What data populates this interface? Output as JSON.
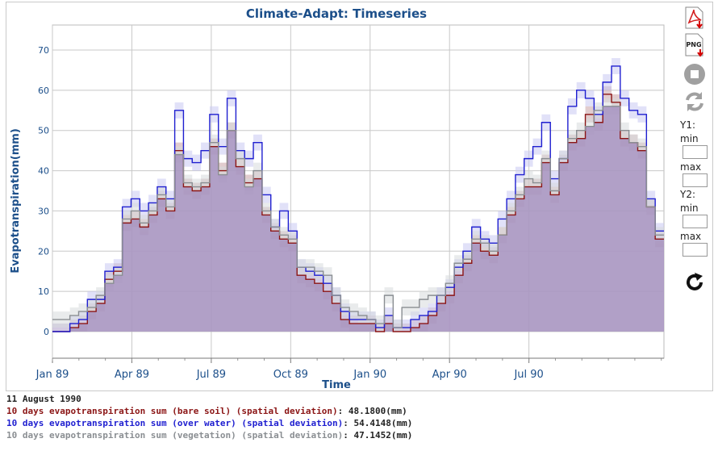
{
  "colors": {
    "bare_soil": "#8b1515",
    "over_water": "#1f1fd0",
    "vegetation": "#8a8e92",
    "area_fill": "#a996c1",
    "title": "#1c4f8a"
  },
  "controls": {
    "pdf_icon": "pdf-download-icon",
    "png_label": "PNG",
    "stop_icon": "stop-icon",
    "refresh_icon": "refresh-icon",
    "y1_label": "Y1:",
    "y2_label": "Y2:",
    "min_label": "min",
    "max_label": "max",
    "reload_icon": "reload-icon",
    "y1_min": "",
    "y1_max": "",
    "y2_min": "",
    "y2_max": ""
  },
  "info": {
    "date": "11 August 1990",
    "rows": [
      {
        "label": "10 days evapotranspiration sum (bare soil) (spatial deviation)",
        "value": "48.1800(mm)",
        "color": "#8b1515"
      },
      {
        "label": "10 days evapotranspiration sum (over water) (spatial deviation)",
        "value": "54.4148(mm)",
        "color": "#1f1fd0"
      },
      {
        "label": "10 days evapotranspiration sum (vegetation) (spatial deviation)",
        "value": "47.1452(mm)",
        "color": "#8a8e92"
      }
    ]
  },
  "chart_data": {
    "type": "line",
    "title": "Climate-Adapt: Timeseries",
    "xlabel": "Time",
    "ylabel": "Evapotranspiration(mm)",
    "ylim": [
      -6,
      76
    ],
    "yticks": [
      0,
      10,
      20,
      30,
      40,
      50,
      60,
      70
    ],
    "xticks": [
      "Jan 89",
      "Apr 89",
      "Jul 89",
      "Oct 89",
      "Jan 90",
      "Apr 90",
      "Jul 90"
    ],
    "step": "10-day",
    "grid": true,
    "series": [
      {
        "name": "10 days evapotranspiration sum (bare soil) (spatial deviation)",
        "color": "#8b1515",
        "values": [
          0,
          0,
          1,
          2,
          5,
          7,
          13,
          15,
          27,
          28,
          26,
          29,
          33,
          30,
          45,
          36,
          35,
          36,
          46,
          40,
          50,
          41,
          37,
          38,
          29,
          25,
          23,
          22,
          14,
          13,
          12,
          10,
          7,
          3,
          2,
          2,
          2,
          0,
          2,
          0,
          0,
          1,
          2,
          4,
          7,
          9,
          14,
          17,
          22,
          20,
          19,
          24,
          29,
          33,
          36,
          36,
          42,
          34,
          42,
          47,
          48,
          54,
          52,
          59,
          57,
          48,
          47,
          45,
          31,
          23
        ]
      },
      {
        "name": "10 days evapotranspiration sum (over water) (spatial deviation)",
        "color": "#1f1fd0",
        "values": [
          0,
          0,
          2,
          3,
          8,
          8,
          15,
          16,
          31,
          33,
          30,
          32,
          36,
          33,
          55,
          43,
          42,
          45,
          54,
          46,
          58,
          45,
          43,
          47,
          34,
          26,
          30,
          25,
          16,
          15,
          14,
          12,
          9,
          5,
          3,
          3,
          3,
          1,
          4,
          1,
          1,
          3,
          4,
          5,
          9,
          11,
          16,
          20,
          26,
          23,
          22,
          28,
          33,
          39,
          43,
          46,
          52,
          38,
          43,
          56,
          60,
          58,
          54,
          62,
          66,
          58,
          55,
          54,
          33,
          25
        ]
      },
      {
        "name": "10 days evapotranspiration sum (vegetation) (spatial deviation)",
        "color": "#8a8e92",
        "values": [
          3,
          3,
          4,
          5,
          6,
          9,
          12,
          14,
          28,
          30,
          27,
          30,
          34,
          31,
          44,
          37,
          36,
          37,
          47,
          39,
          50,
          43,
          36,
          40,
          30,
          26,
          24,
          23,
          16,
          16,
          15,
          14,
          9,
          6,
          5,
          4,
          3,
          2,
          9,
          1,
          6,
          6,
          8,
          9,
          9,
          12,
          17,
          18,
          23,
          22,
          20,
          24,
          30,
          34,
          38,
          37,
          43,
          35,
          43,
          48,
          50,
          51,
          55,
          56,
          56,
          50,
          47,
          46,
          31,
          24
        ]
      }
    ]
  }
}
